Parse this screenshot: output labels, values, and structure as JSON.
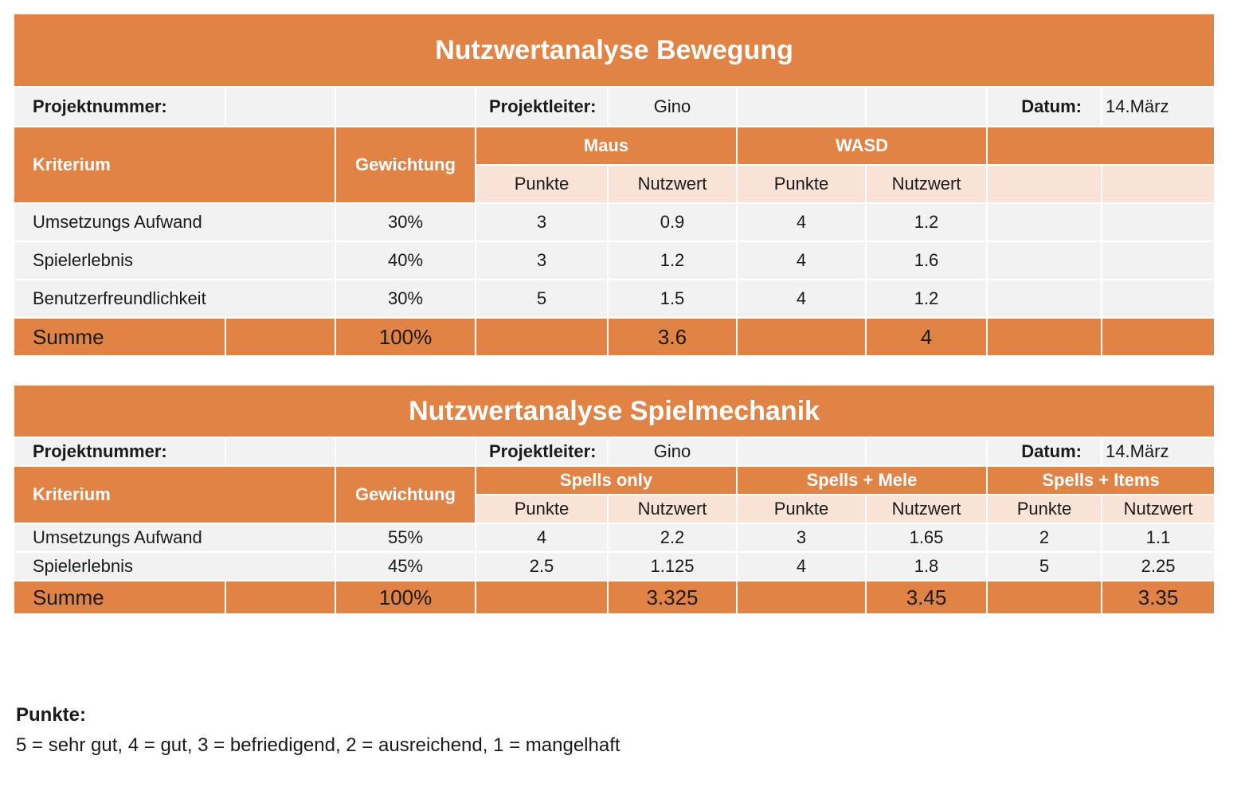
{
  "t1": {
    "title": "Nutzwertanalyse Bewegung",
    "projektnummer_label": "Projektnummer:",
    "projektleiter_label": "Projektleiter:",
    "projektleiter": "Gino",
    "datum_label": "Datum:",
    "datum": "14.März",
    "kriterium_label": "Kriterium",
    "gewichtung_label": "Gewichtung",
    "option1": "Maus",
    "option2": "WASD",
    "punkte_label": "Punkte",
    "nutzwert_label": "Nutzwert",
    "rows": [
      {
        "kriterium": "Umsetzungs Aufwand",
        "gewichtung": "30%",
        "o1_punkte": "3",
        "o1_nutzwert": "0.9",
        "o2_punkte": "4",
        "o2_nutzwert": "1.2"
      },
      {
        "kriterium": "Spielerlebnis",
        "gewichtung": "40%",
        "o1_punkte": "3",
        "o1_nutzwert": "1.2",
        "o2_punkte": "4",
        "o2_nutzwert": "1.6"
      },
      {
        "kriterium": "Benutzerfreundlichkeit",
        "gewichtung": "30%",
        "o1_punkte": "5",
        "o1_nutzwert": "1.5",
        "o2_punkte": "4",
        "o2_nutzwert": "1.2"
      }
    ],
    "summe": {
      "label": "Summe",
      "gewichtung": "100%",
      "o1_nutzwert": "3.6",
      "o2_nutzwert": "4"
    }
  },
  "t2": {
    "title": "Nutzwertanalyse Spielmechanik",
    "projektnummer_label": "Projektnummer:",
    "projektleiter_label": "Projektleiter:",
    "projektleiter": "Gino",
    "datum_label": "Datum:",
    "datum": "14.März",
    "kriterium_label": "Kriterium",
    "gewichtung_label": "Gewichtung",
    "option1": "Spells only",
    "option2": "Spells + Mele",
    "option3": "Spells + Items",
    "punkte_label": "Punkte",
    "nutzwert_label": "Nutzwert",
    "rows": [
      {
        "kriterium": "Umsetzungs Aufwand",
        "gewichtung": "55%",
        "o1_punkte": "4",
        "o1_nutzwert": "2.2",
        "o2_punkte": "3",
        "o2_nutzwert": "1.65",
        "o3_punkte": "2",
        "o3_nutzwert": "1.1"
      },
      {
        "kriterium": "Spielerlebnis",
        "gewichtung": "45%",
        "o1_punkte": "2.5",
        "o1_nutzwert": "1.125",
        "o2_punkte": "4",
        "o2_nutzwert": "1.8",
        "o3_punkte": "5",
        "o3_nutzwert": "2.25"
      }
    ],
    "summe": {
      "label": "Summe",
      "gewichtung": "100%",
      "o1_nutzwert": "3.325",
      "o2_nutzwert": "3.45",
      "o3_nutzwert": "3.35"
    }
  },
  "legend": {
    "title": "Punkte:",
    "text": "5 = sehr gut, 4 = gut, 3 = befriedigend, 2 = ausreichend, 1 = mangelhaft"
  }
}
